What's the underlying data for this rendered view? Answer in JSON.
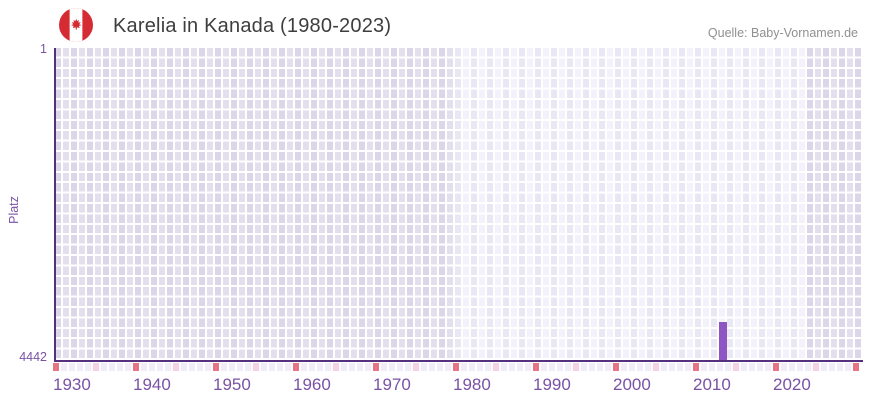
{
  "header": {
    "title": "Karelia in Kanada (1980-2023)",
    "source": "Quelle: Baby-Vornamen.de",
    "flag": "canada-flag"
  },
  "chart_data": {
    "type": "bar",
    "title": "Karelia in Kanada (1980-2023)",
    "xlabel": "",
    "ylabel": "Platz",
    "y_axis": {
      "top": 1,
      "bottom": 4442,
      "top_label": "1",
      "bottom_label": "4442",
      "inverted": true
    },
    "x_axis": {
      "tick_labels": [
        "1930",
        "1940",
        "1950",
        "1960",
        "1970",
        "1980",
        "1990",
        "2000",
        "2010",
        "2020"
      ],
      "range": [
        1930,
        2031
      ]
    },
    "data_range_years": [
      1980,
      2023
    ],
    "grid": true,
    "legend": "none",
    "series": [
      {
        "name": "Platz",
        "points": [
          {
            "year": 2013,
            "rank": 3900
          }
        ]
      }
    ]
  },
  "tick_strip": {
    "cells": 101,
    "major_interval": 10,
    "minor_offset": 5
  },
  "colors": {
    "bar": "#8d56c3",
    "axis_line": "#54307e",
    "axis_text": "#7a52a5",
    "major_tick": "#e57584",
    "minor_tick": "#f3d5e2",
    "strip_cell": "#f0edf8",
    "title_text": "#3e3e3e",
    "source_text": "#909090",
    "flag_red": "#d52b32"
  }
}
